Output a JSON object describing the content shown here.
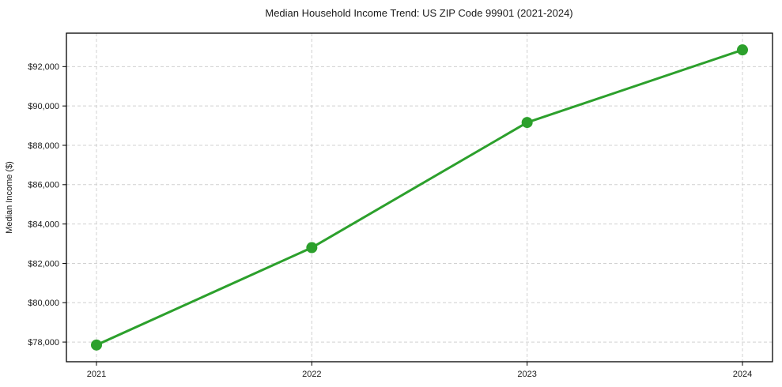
{
  "chart_data": {
    "type": "line",
    "title": "Median Household Income Trend: US ZIP Code 99901 (2021-2024)",
    "xlabel": "",
    "ylabel": "Median Income ($)",
    "categories": [
      "2021",
      "2022",
      "2023",
      "2024"
    ],
    "series": [
      {
        "name": "Median Household Income",
        "values": [
          77850,
          82800,
          89160,
          92850
        ]
      }
    ],
    "ylim": [
      77000,
      93700
    ],
    "yticks": [
      78000,
      80000,
      82000,
      84000,
      86000,
      88000,
      90000,
      92000
    ],
    "ytick_labels": [
      "$78,000",
      "$80,000",
      "$82,000",
      "$84,000",
      "$86,000",
      "$88,000",
      "$90,000",
      "$92,000"
    ],
    "grid": true,
    "grid_style": "dashed",
    "legend": "none",
    "line_color": "#2ca02c",
    "marker": "circle",
    "marker_color": "#2ca02c",
    "grid_color": "#d0d0d0",
    "spine_color": "#000000",
    "background_color": "#ffffff",
    "text_color": "#1a1a1a"
  }
}
